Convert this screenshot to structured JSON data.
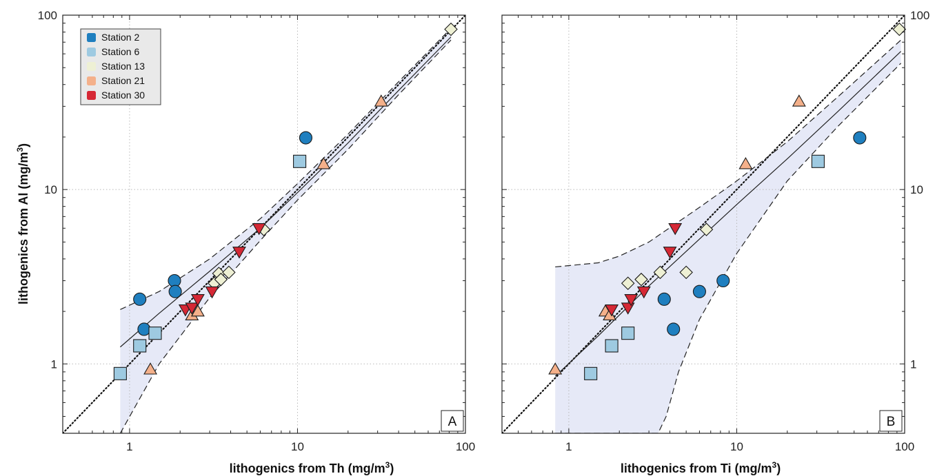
{
  "chart_data": [
    {
      "type": "scatter",
      "panel_label": "A",
      "xlabel_main": "lithogenics from Th (mg/m",
      "xlabel_sup": "3",
      "xlabel_end": ")",
      "ylabel_main": "lithogenics from Al (mg/m",
      "ylabel_sup": "3",
      "ylabel_end": ")",
      "x_scale": "log",
      "y_scale": "log",
      "xlim": [
        0.4,
        100
      ],
      "ylim": [
        0.4,
        100
      ],
      "x_ticks": [
        1,
        10,
        100
      ],
      "x_tick_labels": [
        "1",
        "10",
        "100"
      ],
      "y_ticks": [
        1,
        10,
        100
      ],
      "y_tick_labels": [
        "1",
        "10",
        "100"
      ],
      "grid": true,
      "legend": {
        "placement": "top-left",
        "entries": [
          {
            "name": "Station 2",
            "color": "#1f7fbf"
          },
          {
            "name": "Station 6",
            "color": "#9ecae1"
          },
          {
            "name": "Station 13",
            "color": "#eef0d4"
          },
          {
            "name": "Station 21",
            "color": "#f4b08a"
          },
          {
            "name": "Station 30",
            "color": "#d62835"
          }
        ]
      },
      "series": [
        {
          "name": "Station 2",
          "marker": "circle",
          "color": "#1f7fbf",
          "x": [
            1.15,
            1.22,
            1.85,
            1.87,
            11.2
          ],
          "y": [
            2.35,
            1.58,
            3.0,
            2.6,
            19.8
          ]
        },
        {
          "name": "Station 6",
          "marker": "square",
          "color": "#9ecae1",
          "x": [
            0.88,
            1.15,
            1.42,
            10.3
          ],
          "y": [
            0.88,
            1.27,
            1.5,
            14.5
          ]
        },
        {
          "name": "Station 13",
          "marker": "diamond",
          "color": "#eef0d4",
          "x": [
            3.2,
            3.4,
            3.5,
            3.9,
            6.3,
            82
          ],
          "y": [
            2.9,
            3.3,
            3.05,
            3.35,
            5.9,
            83
          ]
        },
        {
          "name": "Station 21",
          "marker": "triangle-up",
          "color": "#f4b08a",
          "x": [
            1.33,
            2.35,
            2.55,
            14.3,
            31.5
          ],
          "y": [
            0.93,
            1.9,
            2.0,
            14.0,
            32
          ]
        },
        {
          "name": "Station 30",
          "marker": "triangle-down",
          "color": "#d62835",
          "x": [
            2.15,
            2.35,
            2.55,
            3.1,
            4.5,
            5.9
          ],
          "y": [
            2.05,
            2.1,
            2.35,
            2.6,
            4.4,
            6.0
          ]
        }
      ],
      "one_to_one_line": true,
      "fit": {
        "x": [
          0.88,
          1.5,
          3,
          6,
          10,
          20,
          40,
          82
        ],
        "y": [
          1.25,
          1.95,
          3.4,
          6.0,
          9.6,
          18.5,
          37,
          75
        ]
      },
      "ci_upper": {
        "x": [
          0.88,
          1.5,
          3,
          6,
          10,
          20,
          40,
          82
        ],
        "y": [
          2.05,
          2.6,
          4.0,
          6.8,
          10.8,
          20.8,
          41.5,
          84
        ]
      },
      "ci_lower": {
        "x": [
          0.88,
          1.5,
          3,
          6,
          10,
          20,
          40,
          82
        ],
        "y": [
          0.4,
          1.0,
          2.4,
          5.1,
          8.7,
          17,
          35,
          72
        ]
      }
    },
    {
      "type": "scatter",
      "panel_label": "B",
      "xlabel_main": "lithogenics from Ti (mg/m",
      "xlabel_sup": "3",
      "xlabel_end": ")",
      "x_scale": "log",
      "y_scale": "log",
      "xlim": [
        0.4,
        100
      ],
      "ylim": [
        0.4,
        100
      ],
      "x_ticks": [
        1,
        10,
        100
      ],
      "x_tick_labels": [
        "1",
        "10",
        "100"
      ],
      "y_ticks": [
        1,
        10,
        100
      ],
      "y_tick_labels": [
        "1",
        "10",
        "100"
      ],
      "grid": true,
      "series": [
        {
          "name": "Station 2",
          "marker": "circle",
          "color": "#1f7fbf",
          "x": [
            3.7,
            4.2,
            6.0,
            8.3,
            54
          ],
          "y": [
            2.35,
            1.58,
            2.6,
            3.0,
            19.8
          ]
        },
        {
          "name": "Station 6",
          "marker": "square",
          "color": "#9ecae1",
          "x": [
            1.35,
            1.8,
            2.25,
            30.5
          ],
          "y": [
            0.88,
            1.27,
            1.5,
            14.5
          ]
        },
        {
          "name": "Station 13",
          "marker": "diamond",
          "color": "#eef0d4",
          "x": [
            2.25,
            2.7,
            3.5,
            5.0,
            6.6,
            93
          ],
          "y": [
            2.9,
            3.05,
            3.35,
            3.35,
            5.9,
            83
          ]
        },
        {
          "name": "Station 21",
          "marker": "triangle-up",
          "color": "#f4b08a",
          "x": [
            0.83,
            1.65,
            1.75,
            11.3,
            23.5
          ],
          "y": [
            0.93,
            2.0,
            1.9,
            14.0,
            32
          ]
        },
        {
          "name": "Station 30",
          "marker": "triangle-down",
          "color": "#d62835",
          "x": [
            1.8,
            2.25,
            2.35,
            2.8,
            4.0,
            4.3
          ],
          "y": [
            2.05,
            2.1,
            2.35,
            2.6,
            4.4,
            6.0
          ]
        }
      ],
      "one_to_one_line": true,
      "fit": {
        "x": [
          0.83,
          1.5,
          3,
          6,
          10,
          20,
          40,
          95
        ],
        "y": [
          0.85,
          1.45,
          2.8,
          5.2,
          8.2,
          15,
          28,
          62
        ]
      },
      "ci_upper": {
        "x": [
          0.83,
          1.5,
          2,
          3,
          6,
          10,
          20,
          40,
          95
        ],
        "y": [
          3.6,
          3.8,
          4.15,
          5.0,
          7.9,
          11.2,
          18.8,
          34,
          72
        ]
      },
      "ci_lower": {
        "x": [
          0.83,
          1.5,
          2.5,
          3.4,
          3.8,
          4.5,
          6,
          10,
          20,
          40,
          95
        ],
        "y": [
          0.4,
          0.4,
          0.4,
          0.4,
          0.5,
          0.9,
          1.8,
          4.3,
          11.2,
          23,
          53
        ]
      }
    }
  ]
}
